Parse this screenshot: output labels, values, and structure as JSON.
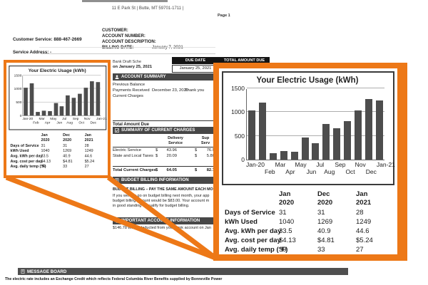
{
  "colors": {
    "accent_orange": "#ED7817",
    "bar_gray": "#4d4d4d",
    "section_header_gray": "#474747",
    "due_header_black": "#141414"
  },
  "letterhead": {
    "address_line": "11 E Park St | Butte, MT 59701-1711 |",
    "page_number": "Page 1"
  },
  "account_info": {
    "customer_service": "Customer Service: 888-467-2669",
    "customer_label": "CUSTOMER:",
    "account_number_label": "ACCOUNT NUMBER:",
    "account_description_label": "ACCOUNT DESCRIPTION:",
    "billing_date_label": "BILLING DATE:",
    "billing_date_value": "January 7, 2021",
    "service_address_label": "Service Address: -"
  },
  "bank_draft": {
    "line1": "Bank Draft Sche",
    "line2": "on January 25, 2021"
  },
  "due_table": {
    "due_date_header": "DUE DATE",
    "total_amount_header": "TOTAL AMOUNT DUE",
    "due_date_value": "January 25, 2021"
  },
  "account_summary": {
    "title": "ACCOUNT SUMMARY",
    "row1": "Previous Balance",
    "row2_label": "Payments Received",
    "row2_date": "December 23, 2020",
    "row2_note": "Thank you",
    "row3": "Current Charges"
  },
  "current_charges": {
    "total_amount_due_label": "Total Amount Due",
    "title": "SUMMARY OF CURRENT CHARGES",
    "delivery_header_line1": "Delivery",
    "delivery_header_line2": "Service",
    "supply_header_line1": "Sup",
    "supply_header_line2": "Serv",
    "rows": [
      {
        "label": "Electric Service",
        "delivery_cur": "$",
        "delivery": "43.96",
        "supply_cur": "$",
        "supply": "76.9"
      },
      {
        "label": "State and Local Taxes",
        "delivery_cur": "$",
        "delivery": "20.09",
        "supply_cur": "$",
        "supply": "5.80"
      }
    ],
    "total_label": "Total Current Charges",
    "total_delivery_cur": "$",
    "total_delivery": "64.05",
    "total_supply_cur": "$",
    "total_supply": "82.7"
  },
  "budget_billing": {
    "title": "BUDGET BILLING INFORMATION",
    "heading": "BUDGET BILLING – PAY THE SAME AMOUNT EACH MON",
    "line1": "If you were to go on budget billing next month, your app",
    "line2": "budget billing amount would be $83.00. Your account m",
    "line3": "in good standing to qualify for budget billing."
  },
  "important_info": {
    "title": "IMPORTANT ACCOUNT INFORMATION",
    "body": "$146.78 will be deducted from your bank account on Jan"
  },
  "message_board": {
    "title": "MESSAGE BOARD",
    "body": "The electric rate includes an Exchange Credit which reflects Federal Columbia River Benefits supplied by Bonneville Power"
  },
  "chart_data": {
    "type": "bar",
    "title": "Your Electric Usage (kWh)",
    "categories": [
      "Jan-20",
      "Feb",
      "Mar",
      "Apr",
      "May",
      "Jun",
      "Jul",
      "Aug",
      "Sep",
      "Oct",
      "Nov",
      "Dec",
      "Jan-21"
    ],
    "values": [
      1040,
      1200,
      140,
      185,
      160,
      460,
      350,
      750,
      660,
      810,
      1030,
      1269,
      1249
    ],
    "xlabel": "",
    "ylabel": "",
    "ylim": [
      0,
      1500
    ],
    "yticks": [
      0,
      500,
      1000,
      1500
    ],
    "grid": true,
    "legend": false,
    "bar_color": "#4d4d4d"
  },
  "usage_table": {
    "col_headers": [
      {
        "month": "Jan",
        "year": "2020"
      },
      {
        "month": "Dec",
        "year": "2020"
      },
      {
        "month": "Jan",
        "year": "2021"
      }
    ],
    "rows": [
      {
        "label": "Days of Service",
        "values": [
          "31",
          "31",
          "28"
        ]
      },
      {
        "label": "kWh Used",
        "values": [
          "1040",
          "1269",
          "1249"
        ]
      },
      {
        "label": "Avg. kWh per day",
        "values": [
          "33.5",
          "40.9",
          "44.6"
        ]
      },
      {
        "label": "Avg. cost per day",
        "values": [
          "$4.13",
          "$4.81",
          "$5.24"
        ]
      },
      {
        "label": "Avg. daily temp (°F)",
        "values": [
          "30",
          "33",
          "27"
        ]
      }
    ]
  }
}
